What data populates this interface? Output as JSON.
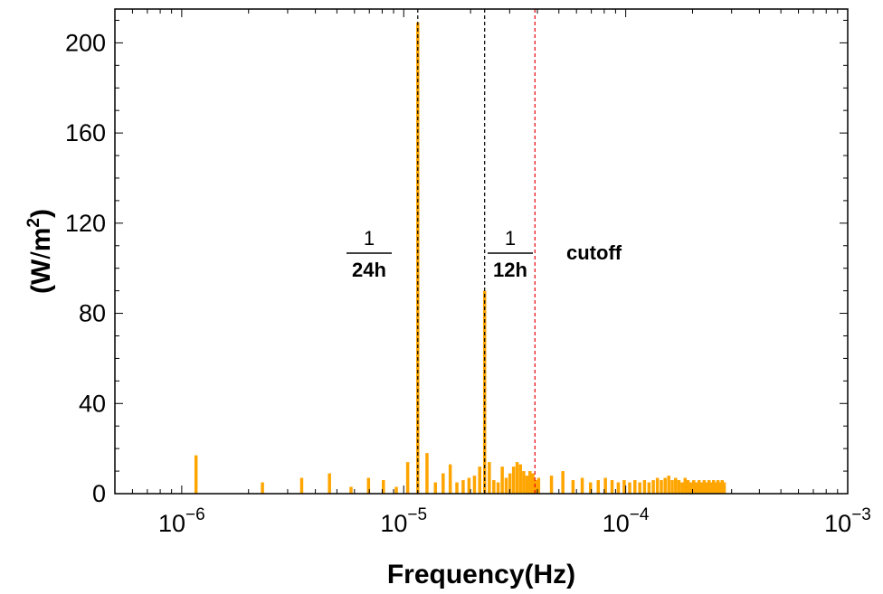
{
  "chart_data": {
    "type": "bar",
    "xlabel": "Frequency(Hz)",
    "ylabel": "(W/m²)",
    "ylabel_parts": {
      "open": "(W",
      "slash": "/",
      "unit": "m",
      "exp": "2",
      "close": ")"
    },
    "x_scale": "log",
    "xlim": [
      5e-07,
      0.001
    ],
    "ylim": [
      0,
      215
    ],
    "grid": false,
    "x_ticks": [
      {
        "value": 1e-06,
        "base": "10",
        "exp": "−6"
      },
      {
        "value": 1e-05,
        "base": "10",
        "exp": "−5"
      },
      {
        "value": 0.0001,
        "base": "10",
        "exp": "−4"
      },
      {
        "value": 0.001,
        "base": "10",
        "exp": "−3"
      }
    ],
    "y_ticks": [
      {
        "value": 0,
        "label": "0"
      },
      {
        "value": 40,
        "label": "40"
      },
      {
        "value": 80,
        "label": "80"
      },
      {
        "value": 120,
        "label": "120"
      },
      {
        "value": 160,
        "label": "160"
      },
      {
        "value": 200,
        "label": "200"
      }
    ],
    "bar_color": "#ffa500",
    "series": [
      {
        "x": [
          1.16e-06,
          2.31e-06,
          3.47e-06,
          4.63e-06,
          5.79e-06,
          6.94e-06,
          8.1e-06,
          9.26e-06,
          1.042e-05,
          1.157e-05,
          1.273e-05,
          1.389e-05,
          1.505e-05,
          1.62e-05,
          1.736e-05,
          1.852e-05,
          1.968e-05,
          2.083e-05,
          2.199e-05,
          2.315e-05,
          2.43e-05,
          2.546e-05,
          2.662e-05,
          2.778e-05,
          2.894e-05,
          3.009e-05,
          3.125e-05,
          3.241e-05,
          3.356e-05,
          3.472e-05,
          3.588e-05,
          3.704e-05,
          3.819e-05,
          3.935e-05,
          4.051e-05,
          4.63e-05,
          5.21e-05,
          5.79e-05,
          6.37e-05,
          6.94e-05,
          7.52e-05,
          8.1e-05,
          8.68e-05,
          9.26e-05,
          9.84e-05,
          0.0001042,
          0.00011,
          0.0001157,
          0.0001215,
          0.0001273,
          0.0001331,
          0.0001389,
          0.0001447,
          0.0001505,
          0.0001563,
          0.000162,
          0.0001678,
          0.0001736,
          0.0001794,
          0.0001852,
          0.000191,
          0.0001968,
          0.0002025,
          0.0002083,
          0.0002141,
          0.0002199,
          0.0002257,
          0.0002315,
          0.0002373,
          0.000243,
          0.0002488,
          0.0002546,
          0.0002604,
          0.0002662,
          0.000272,
          0.0002778
        ],
        "values": [
          17,
          5,
          7,
          9,
          3,
          7,
          6,
          3,
          14,
          209,
          18,
          5,
          9,
          13,
          5,
          6,
          7,
          8,
          12,
          90,
          14,
          6,
          5,
          12,
          7,
          9,
          12,
          14,
          13,
          10,
          8,
          10,
          9,
          6,
          7,
          8,
          10,
          6,
          7,
          5,
          6,
          7,
          6,
          5,
          6,
          5,
          6,
          5,
          6,
          5,
          6,
          7,
          6,
          7,
          8,
          6,
          7,
          6,
          5,
          7,
          6,
          5,
          6,
          5,
          6,
          5,
          6,
          5,
          6,
          5,
          6,
          5,
          6,
          5,
          6,
          5
        ]
      }
    ],
    "reference_lines": [
      {
        "x": 1.157e-05,
        "color": "#000000",
        "style": "dashed"
      },
      {
        "x": 2.315e-05,
        "color": "#000000",
        "style": "dashed"
      },
      {
        "x": 3.9e-05,
        "color": "#e8000b",
        "style": "dashed"
      }
    ],
    "annotations": {
      "label_24h": {
        "numerator": "1",
        "denominator": "24h"
      },
      "label_12h": {
        "numerator": "1",
        "denominator": "12h"
      },
      "cutoff": "cutoff"
    }
  }
}
